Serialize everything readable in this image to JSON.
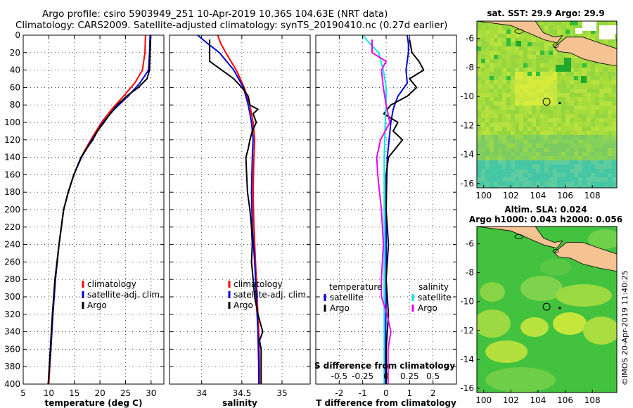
{
  "title": {
    "line1": "Argo profile: csiro 5903949_251 10-Apr-2019 10.36S 104.63E (NRT data)",
    "line2": "Climatology: CARS2009. Satellite-adjusted climatology: synTS_20190410.nc (0.27d earlier)"
  },
  "stamp": "©IMOS 20-Apr-2019 11:40:25",
  "colors": {
    "red": "#ff0000",
    "blue": "#0000dd",
    "black": "#000000",
    "cyan": "#00e8e8",
    "magenta": "#ee00ee",
    "land": "#f5c292"
  },
  "chart_data": [
    {
      "type": "line",
      "panel": "temperature",
      "xlabel": "temperature (deg C)",
      "xlim": [
        5,
        32.5
      ],
      "ylim": [
        400,
        0
      ],
      "xticks": [
        5,
        10,
        15,
        20,
        25,
        30
      ],
      "xtick_labels": [
        "5",
        "10",
        "15",
        "20",
        "25",
        "30"
      ],
      "yticks": [
        0,
        20,
        40,
        60,
        80,
        100,
        120,
        140,
        160,
        180,
        200,
        220,
        240,
        260,
        280,
        300,
        320,
        340,
        360,
        380,
        400
      ],
      "ytick_labels": [
        "0",
        "20",
        "40",
        "60",
        "80",
        "100",
        "120",
        "140",
        "160",
        "180",
        "200",
        "220",
        "240",
        "260",
        "280",
        "300",
        "320",
        "340",
        "360",
        "380",
        "400"
      ],
      "legend": [
        "climatology",
        "satellite-adj. clim.",
        "Argo"
      ],
      "series": [
        {
          "name": "climatology",
          "color": "red",
          "y": [
            0,
            20,
            40,
            55,
            70,
            85,
            100,
            120,
            140,
            160,
            180,
            200,
            240,
            280,
            320,
            360,
            400
          ],
          "x": [
            28.9,
            28.8,
            28.3,
            26.8,
            24.6,
            22.3,
            20.3,
            18.2,
            16.3,
            14.9,
            13.8,
            12.9,
            12.0,
            11.3,
            10.8,
            10.4,
            10.0
          ]
        },
        {
          "name": "satellite-adj. clim.",
          "color": "blue",
          "y": [
            0,
            20,
            40,
            55,
            70,
            85,
            100,
            120,
            140,
            160,
            180,
            200,
            240,
            280,
            320,
            360,
            400
          ],
          "x": [
            29.8,
            29.7,
            29.5,
            27.8,
            25.5,
            22.8,
            20.6,
            18.4,
            16.4,
            14.9,
            13.8,
            12.9,
            12.0,
            11.3,
            10.8,
            10.4,
            9.9
          ]
        },
        {
          "name": "Argo",
          "color": "black",
          "y": [
            5,
            20,
            40,
            50,
            60,
            70,
            80,
            90,
            100,
            110,
            120,
            130,
            140,
            160,
            180,
            200,
            240,
            280,
            320,
            360,
            400
          ],
          "x": [
            29.9,
            29.8,
            29.7,
            29.2,
            27.5,
            25.2,
            23.4,
            22.0,
            20.8,
            19.5,
            18.6,
            17.4,
            16.3,
            14.9,
            13.8,
            12.9,
            12.0,
            11.2,
            10.7,
            10.3,
            9.9
          ]
        }
      ]
    },
    {
      "type": "line",
      "panel": "salinity",
      "xlabel": "salinity",
      "xlim": [
        33.6,
        35.35
      ],
      "ylim": [
        400,
        0
      ],
      "xticks": [
        34,
        34.5,
        35
      ],
      "xtick_labels": [
        "34",
        "34.5",
        "35"
      ],
      "legend": [
        "climatology",
        "satellite-adj. clim.",
        "Argo"
      ],
      "series": [
        {
          "name": "climatology",
          "color": "red",
          "y": [
            0,
            10,
            20,
            40,
            60,
            80,
            100,
            120,
            140,
            180,
            220,
            260,
            300,
            340,
            380,
            400
          ],
          "x": [
            34.2,
            34.24,
            34.3,
            34.43,
            34.53,
            34.6,
            34.64,
            34.66,
            34.65,
            34.64,
            34.65,
            34.67,
            34.69,
            34.71,
            34.72,
            34.72
          ]
        },
        {
          "name": "satellite-adj. clim.",
          "color": "blue",
          "y": [
            0,
            10,
            20,
            40,
            60,
            80,
            100,
            120,
            140,
            180,
            220,
            260,
            300,
            340,
            380,
            400
          ],
          "x": [
            33.95,
            34.08,
            34.22,
            34.4,
            34.52,
            34.58,
            34.62,
            34.64,
            34.63,
            34.62,
            34.63,
            34.66,
            34.68,
            34.7,
            34.71,
            34.71
          ]
        },
        {
          "name": "Argo",
          "color": "black",
          "y": [
            5,
            30,
            40,
            50,
            60,
            70,
            80,
            85,
            90,
            100,
            110,
            120,
            130,
            140,
            160,
            180,
            200,
            220,
            240,
            260,
            280,
            300,
            320,
            340,
            350,
            360,
            380,
            400
          ],
          "x": [
            34.1,
            34.1,
            34.25,
            34.4,
            34.5,
            34.58,
            34.6,
            34.7,
            34.64,
            34.68,
            34.63,
            34.6,
            34.58,
            34.55,
            34.56,
            34.57,
            34.6,
            34.62,
            34.63,
            34.62,
            34.64,
            34.66,
            34.7,
            34.76,
            34.72,
            34.74,
            34.74,
            34.74
          ]
        }
      ]
    },
    {
      "type": "line",
      "panel": "difference",
      "xlabel": "T difference from climatology",
      "xlabel_top": "S difference from climatology",
      "xlim": [
        -3,
        3
      ],
      "ylim": [
        400,
        0
      ],
      "xticks": [
        -2,
        -1,
        0,
        1,
        2
      ],
      "xtick_labels": [
        "-2",
        "-1",
        "0",
        "1",
        "2"
      ],
      "s_ticks": [
        -0.5,
        -0.25,
        0,
        0.25,
        0.5
      ],
      "s_tick_labels": [
        "-0.5",
        "-0.25",
        "0",
        "0.25",
        "0.5"
      ],
      "legend_left_title": "temperature",
      "legend_right_title": "salinity",
      "legend_left": [
        "satellite",
        "Argo"
      ],
      "legend_right": [
        "satellite",
        "Argo"
      ],
      "series": [
        {
          "name": "T satellite",
          "color": "blue",
          "y": [
            0,
            10,
            20,
            40,
            55,
            70,
            85,
            100,
            140,
            200,
            300,
            400
          ],
          "x": [
            0.9,
            0.95,
            0.95,
            0.85,
            0.9,
            0.5,
            0.3,
            0.2,
            0.05,
            0.0,
            0.0,
            -0.05
          ]
        },
        {
          "name": "T Argo",
          "color": "black",
          "y": [
            5,
            20,
            30,
            40,
            50,
            60,
            70,
            80,
            90,
            100,
            110,
            120,
            130,
            140,
            160,
            200,
            240,
            280,
            320,
            360,
            400
          ],
          "x": [
            1.0,
            1.1,
            1.4,
            1.6,
            1.0,
            1.3,
            0.9,
            0.2,
            -0.1,
            0.5,
            0.3,
            0.7,
            0.4,
            0.1,
            0.0,
            0.0,
            0.1,
            0.0,
            0.1,
            0.0,
            0.0
          ]
        },
        {
          "name": "S satellite",
          "color": "cyan",
          "y": [
            0,
            10,
            20,
            40,
            60,
            80,
            100,
            140,
            200,
            300,
            400
          ],
          "x": [
            -0.25,
            -0.17,
            -0.08,
            -0.03,
            0.0,
            0.0,
            -0.01,
            -0.02,
            -0.02,
            -0.02,
            -0.02
          ]
        },
        {
          "name": "S Argo",
          "color": "magenta",
          "y": [
            5,
            20,
            30,
            40,
            60,
            80,
            100,
            120,
            140,
            160,
            200,
            240,
            280,
            300,
            320,
            340,
            360,
            380,
            400
          ],
          "x": [
            -0.15,
            -0.15,
            0.0,
            -0.05,
            -0.03,
            0.0,
            0.04,
            -0.06,
            -0.1,
            -0.09,
            -0.05,
            -0.03,
            -0.05,
            -0.05,
            0.01,
            0.05,
            0.02,
            0.02,
            0.02
          ]
        }
      ]
    },
    {
      "type": "heatmap",
      "panel": "map-sst",
      "title": "sat. SST: 29.9 Argo: 29.9",
      "xlim": [
        99.5,
        109.8
      ],
      "ylim": [
        -16.3,
        -4.8
      ],
      "xticks": [
        100,
        102,
        104,
        106,
        108
      ],
      "xtick_labels": [
        "100",
        "102",
        "104",
        "106",
        "108"
      ],
      "yticks": [
        -6,
        -8,
        -10,
        -12,
        -14,
        -16
      ],
      "ytick_labels": [
        "-6",
        "-8",
        "-10",
        "-12",
        "-14",
        "-16"
      ],
      "argo_position": {
        "lon": 104.63,
        "lat": -10.36
      }
    },
    {
      "type": "heatmap",
      "panel": "map-sla",
      "title": "Altim. SLA: 0.024",
      "subtitle": "Argo h1000: 0.043 h2000: 0.056",
      "xlim": [
        99.5,
        109.8
      ],
      "ylim": [
        -16.3,
        -4.8
      ],
      "xticks": [
        100,
        102,
        104,
        106,
        108
      ],
      "xtick_labels": [
        "100",
        "102",
        "104",
        "106",
        "108"
      ],
      "yticks": [
        -6,
        -8,
        -10,
        -12,
        -14,
        -16
      ],
      "ytick_labels": [
        "-6",
        "-8",
        "-10",
        "-12",
        "-14",
        "-16"
      ],
      "argo_position": {
        "lon": 104.63,
        "lat": -10.36
      }
    }
  ]
}
